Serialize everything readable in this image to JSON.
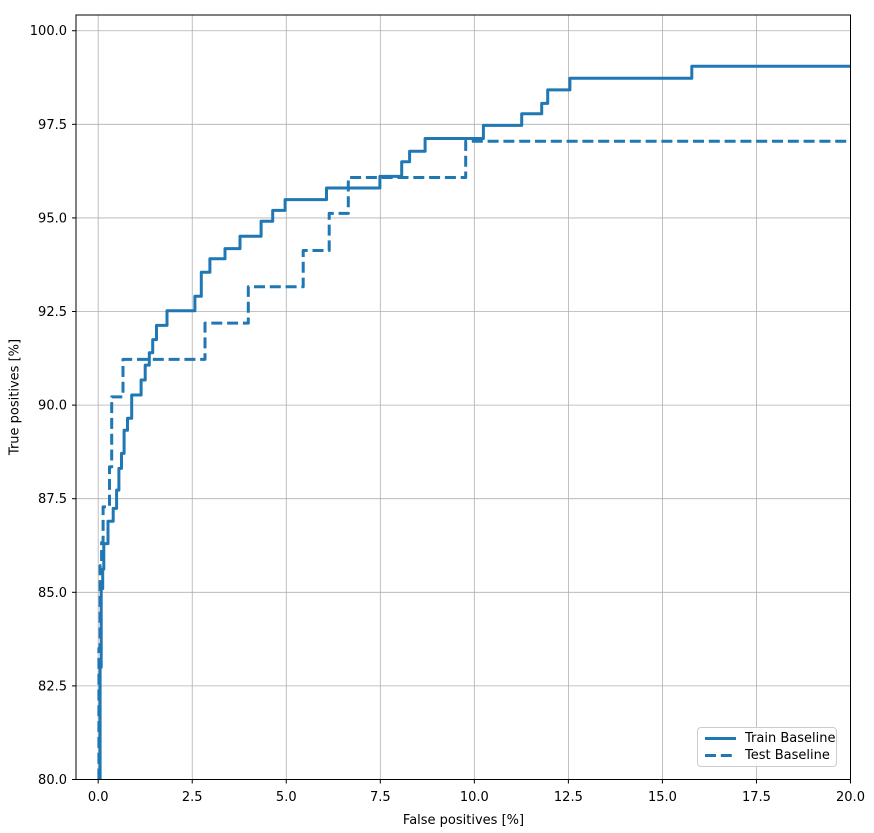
{
  "chart_data": {
    "type": "line",
    "subtype": "step",
    "title": "",
    "xlabel": "False positives [%]",
    "ylabel": "True positives [%]",
    "xlim": [
      -0.59,
      20.0
    ],
    "ylim": [
      80.0,
      100.42
    ],
    "grid": true,
    "grid_color": "#b0b0b0",
    "spine_color": "#000000",
    "tick_label_color": "#000000",
    "accent_color": "#1f77b4",
    "legend": {
      "position": "lower right",
      "entries": [
        "Train Baseline",
        "Test Baseline"
      ]
    },
    "xticks": {
      "values": [
        0,
        2.5,
        5,
        7.5,
        10,
        12.5,
        15,
        17.5,
        20
      ],
      "labels": [
        "0.0",
        "2.5",
        "5.0",
        "7.5",
        "10.0",
        "12.5",
        "15.0",
        "17.5",
        "20.0"
      ]
    },
    "yticks": {
      "values": [
        80,
        82.5,
        85,
        87.5,
        90,
        92.5,
        95,
        97.5,
        100
      ],
      "labels": [
        "80.0",
        "82.5",
        "85.0",
        "87.5",
        "90.0",
        "92.5",
        "95.0",
        "97.5",
        "100.0"
      ]
    },
    "series": [
      {
        "name": "Train Baseline",
        "style": "solid",
        "color": "#1f77b4",
        "linewidth": 3,
        "points": [
          [
            0.05,
            80.0
          ],
          [
            0.05,
            83.0
          ],
          [
            0.08,
            83.0
          ],
          [
            0.08,
            85.1
          ],
          [
            0.12,
            85.1
          ],
          [
            0.12,
            85.62
          ],
          [
            0.15,
            85.62
          ],
          [
            0.15,
            86.3
          ],
          [
            0.26,
            86.3
          ],
          [
            0.26,
            86.9
          ],
          [
            0.4,
            86.9
          ],
          [
            0.4,
            87.24
          ],
          [
            0.49,
            87.24
          ],
          [
            0.49,
            87.73
          ],
          [
            0.55,
            87.73
          ],
          [
            0.55,
            88.31
          ],
          [
            0.62,
            88.31
          ],
          [
            0.62,
            88.71
          ],
          [
            0.69,
            88.71
          ],
          [
            0.69,
            89.33
          ],
          [
            0.78,
            89.33
          ],
          [
            0.78,
            89.65
          ],
          [
            0.89,
            89.65
          ],
          [
            0.89,
            90.27
          ],
          [
            1.14,
            90.27
          ],
          [
            1.14,
            90.67
          ],
          [
            1.25,
            90.67
          ],
          [
            1.25,
            91.07
          ],
          [
            1.36,
            91.07
          ],
          [
            1.36,
            91.4
          ],
          [
            1.45,
            91.4
          ],
          [
            1.45,
            91.75
          ],
          [
            1.55,
            91.75
          ],
          [
            1.55,
            92.13
          ],
          [
            1.83,
            92.13
          ],
          [
            1.83,
            92.52
          ],
          [
            2.57,
            92.52
          ],
          [
            2.57,
            92.91
          ],
          [
            2.74,
            92.91
          ],
          [
            2.74,
            93.55
          ],
          [
            2.97,
            93.55
          ],
          [
            2.97,
            93.91
          ],
          [
            3.37,
            93.91
          ],
          [
            3.37,
            94.18
          ],
          [
            3.77,
            94.18
          ],
          [
            3.77,
            94.51
          ],
          [
            4.33,
            94.51
          ],
          [
            4.33,
            94.91
          ],
          [
            4.64,
            94.91
          ],
          [
            4.64,
            95.2
          ],
          [
            4.97,
            95.2
          ],
          [
            4.97,
            95.49
          ],
          [
            6.07,
            95.49
          ],
          [
            6.07,
            95.8
          ],
          [
            7.49,
            95.8
          ],
          [
            7.49,
            96.11
          ],
          [
            8.07,
            96.11
          ],
          [
            8.07,
            96.5
          ],
          [
            8.28,
            96.5
          ],
          [
            8.28,
            96.78
          ],
          [
            8.69,
            96.78
          ],
          [
            8.69,
            97.12
          ],
          [
            10.24,
            97.12
          ],
          [
            10.24,
            97.47
          ],
          [
            11.26,
            97.47
          ],
          [
            11.26,
            97.78
          ],
          [
            11.79,
            97.78
          ],
          [
            11.79,
            98.06
          ],
          [
            11.95,
            98.06
          ],
          [
            11.95,
            98.42
          ],
          [
            12.54,
            98.42
          ],
          [
            12.54,
            98.73
          ],
          [
            15.78,
            98.73
          ],
          [
            15.78,
            99.05
          ],
          [
            20.0,
            99.05
          ]
        ]
      },
      {
        "name": "Test Baseline",
        "style": "dashed",
        "color": "#1f77b4",
        "linewidth": 3,
        "dash": [
          11,
          4.8
        ],
        "points": [
          [
            0.02,
            80.0
          ],
          [
            0.02,
            83.5
          ],
          [
            0.05,
            83.5
          ],
          [
            0.05,
            85.71
          ],
          [
            0.09,
            85.71
          ],
          [
            0.09,
            86.33
          ],
          [
            0.13,
            86.33
          ],
          [
            0.13,
            87.28
          ],
          [
            0.3,
            87.28
          ],
          [
            0.3,
            88.35
          ],
          [
            0.36,
            88.35
          ],
          [
            0.36,
            90.22
          ],
          [
            0.66,
            90.22
          ],
          [
            0.66,
            91.22
          ],
          [
            2.84,
            91.22
          ],
          [
            2.84,
            92.19
          ],
          [
            3.99,
            92.19
          ],
          [
            3.99,
            93.16
          ],
          [
            5.45,
            93.16
          ],
          [
            5.45,
            94.13
          ],
          [
            6.14,
            94.13
          ],
          [
            6.14,
            95.12
          ],
          [
            6.65,
            95.12
          ],
          [
            6.65,
            96.08
          ],
          [
            9.77,
            96.08
          ],
          [
            9.77,
            97.05
          ],
          [
            20.0,
            97.05
          ]
        ]
      }
    ]
  }
}
